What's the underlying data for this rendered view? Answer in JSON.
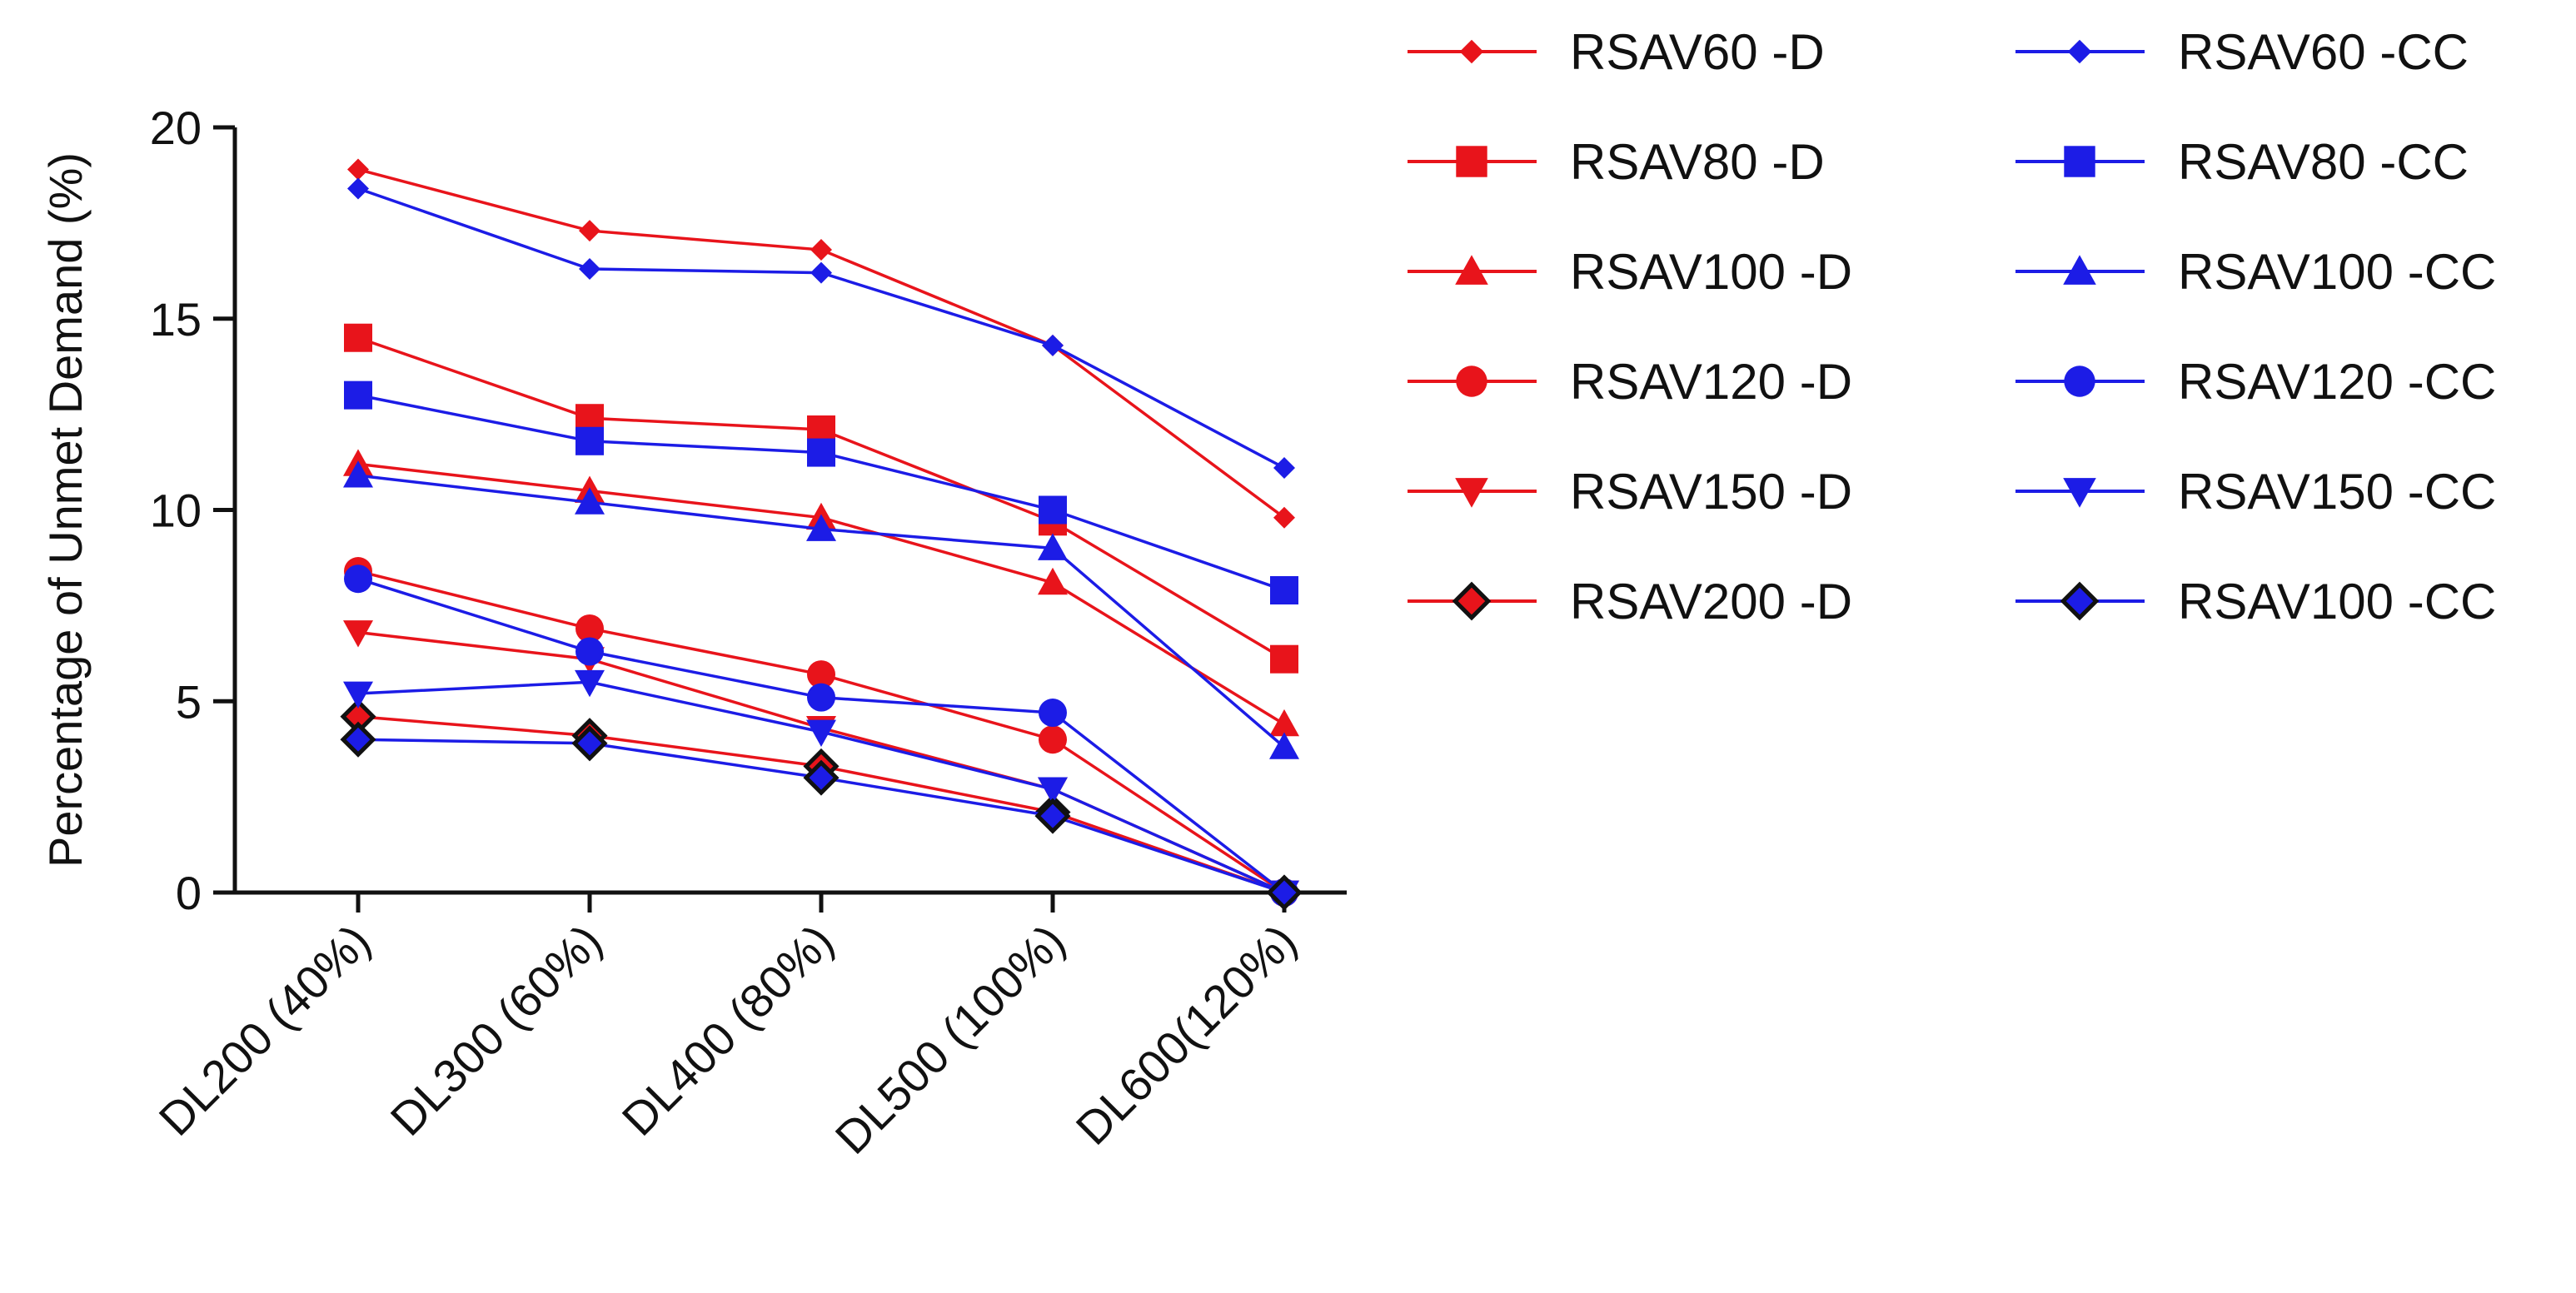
{
  "chart_data": {
    "type": "line",
    "title": "",
    "xlabel": "",
    "ylabel": "Percentage of Unmet Demand (%)",
    "ylim": [
      0,
      20
    ],
    "yticks": [
      0,
      5,
      10,
      15,
      20
    ],
    "grid": false,
    "legend_position": "right",
    "categories": [
      "DL200 (40%)",
      "DL300 (60%)",
      "DL400 (80%)",
      "DL500 (100%)",
      "DL600(120%)"
    ],
    "series": [
      {
        "name": "RSAV60 -D",
        "marker": "diamond",
        "color": "#e8141b",
        "values": [
          18.9,
          17.3,
          16.8,
          14.3,
          9.8
        ]
      },
      {
        "name": "RSAV80 -D",
        "marker": "square",
        "color": "#e8141b",
        "values": [
          14.5,
          12.4,
          12.1,
          9.7,
          6.1
        ]
      },
      {
        "name": "RSAV100 -D",
        "marker": "triangle-up",
        "color": "#e8141b",
        "values": [
          11.2,
          10.5,
          9.8,
          8.1,
          4.4
        ]
      },
      {
        "name": "RSAV120 -D",
        "marker": "circle",
        "color": "#e8141b",
        "values": [
          8.4,
          6.9,
          5.7,
          4.0,
          0.0
        ]
      },
      {
        "name": "RSAV150 -D",
        "marker": "triangle-down",
        "color": "#e8141b",
        "values": [
          6.8,
          6.1,
          4.3,
          2.7,
          0.0
        ]
      },
      {
        "name": "RSAV200 -D",
        "marker": "diamond-outlined",
        "color": "#e8141b",
        "values": [
          4.6,
          4.1,
          3.3,
          2.1,
          0.0
        ]
      },
      {
        "name": "RSAV60 -CC",
        "marker": "diamond",
        "color": "#1c1ce6",
        "values": [
          18.4,
          16.3,
          16.2,
          14.3,
          11.1
        ]
      },
      {
        "name": "RSAV80 -CC",
        "marker": "square",
        "color": "#1c1ce6",
        "values": [
          13.0,
          11.8,
          11.5,
          10.0,
          7.9
        ]
      },
      {
        "name": "RSAV100 -CC",
        "marker": "triangle-up",
        "color": "#1c1ce6",
        "values": [
          10.9,
          10.2,
          9.5,
          9.0,
          3.8
        ]
      },
      {
        "name": "RSAV120 -CC",
        "marker": "circle",
        "color": "#1c1ce6",
        "values": [
          8.2,
          6.3,
          5.1,
          4.7,
          0.0
        ]
      },
      {
        "name": "RSAV150 -CC",
        "marker": "triangle-down",
        "color": "#1c1ce6",
        "values": [
          5.2,
          5.5,
          4.2,
          2.7,
          0.0
        ]
      },
      {
        "name": "RSAV100 -CC",
        "marker": "diamond-outlined",
        "color": "#1c1ce6",
        "values": [
          4.0,
          3.9,
          3.0,
          2.0,
          0.0
        ]
      }
    ]
  }
}
